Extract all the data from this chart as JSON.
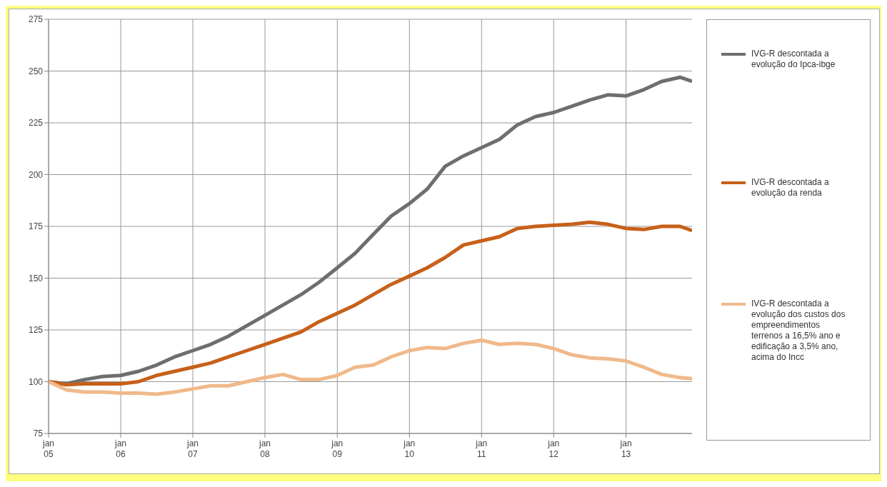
{
  "chart_data": {
    "type": "line",
    "x": [
      "2005-01",
      "2005-04",
      "2005-07",
      "2005-10",
      "2006-01",
      "2006-04",
      "2006-07",
      "2006-10",
      "2007-01",
      "2007-04",
      "2007-07",
      "2007-10",
      "2008-01",
      "2008-04",
      "2008-07",
      "2008-10",
      "2009-01",
      "2009-04",
      "2009-07",
      "2009-10",
      "2010-01",
      "2010-04",
      "2010-07",
      "2010-10",
      "2011-01",
      "2011-04",
      "2011-07",
      "2011-10",
      "2012-01",
      "2012-04",
      "2012-07",
      "2012-10",
      "2013-01",
      "2013-04",
      "2013-07",
      "2013-10",
      "2013-12"
    ],
    "series": [
      {
        "name": "IVG-R descontada a evolução do Ipca-ibge",
        "color": "#6e6e6e",
        "values": [
          100,
          99,
          101,
          102.5,
          103,
          105,
          108,
          112,
          115,
          118,
          122,
          127,
          132,
          137,
          142,
          148,
          155,
          162,
          171,
          180,
          186,
          193,
          204,
          209,
          213,
          217,
          224,
          228,
          230,
          233,
          236,
          238.5,
          238,
          241,
          245,
          247,
          245
        ]
      },
      {
        "name": "IVG-R descontada a evolução da renda",
        "color": "#c8601a",
        "values": [
          100,
          98.5,
          99,
          99,
          99,
          100,
          103,
          105,
          107,
          109,
          112,
          115,
          118,
          121,
          124,
          129,
          133,
          137,
          142,
          147,
          151,
          155,
          160,
          166,
          168,
          170,
          174,
          175,
          175.5,
          176,
          177,
          176,
          174,
          173.5,
          175,
          175,
          173
        ]
      },
      {
        "name": "IVG-R descontada a evolução dos custos dos empreendimentos terrenos a 16,5% ano e edificação a 3,5% ano, acima do Incc",
        "color": "#f0b98a",
        "values": [
          100,
          96,
          95,
          95,
          94.5,
          94.5,
          94,
          95,
          96.5,
          98,
          98,
          100,
          102,
          103.5,
          101,
          101,
          103,
          107,
          108,
          112,
          115,
          116.5,
          116,
          118.5,
          120,
          118,
          118.5,
          118,
          116,
          113,
          111.5,
          111,
          110,
          107,
          103.5,
          102,
          101.5
        ]
      }
    ],
    "xlim": [
      "2005-01",
      "2013-12"
    ],
    "xticks": [
      {
        "value": "2005-01",
        "label": "jan 05"
      },
      {
        "value": "2006-01",
        "label": "jan 06"
      },
      {
        "value": "2007-01",
        "label": "jan 07"
      },
      {
        "value": "2008-01",
        "label": "jan 08"
      },
      {
        "value": "2009-01",
        "label": "jan 09"
      },
      {
        "value": "2010-01",
        "label": "jan 10"
      },
      {
        "value": "2011-01",
        "label": "jan 11"
      },
      {
        "value": "2012-01",
        "label": "jan 12"
      },
      {
        "value": "2013-01",
        "label": "jan 13"
      }
    ],
    "ylim": [
      75,
      275
    ],
    "yticks": [
      75,
      100,
      125,
      150,
      175,
      200,
      225,
      250,
      275
    ],
    "grid": true,
    "legend": "right",
    "marker": "none",
    "line_style": "solid"
  }
}
